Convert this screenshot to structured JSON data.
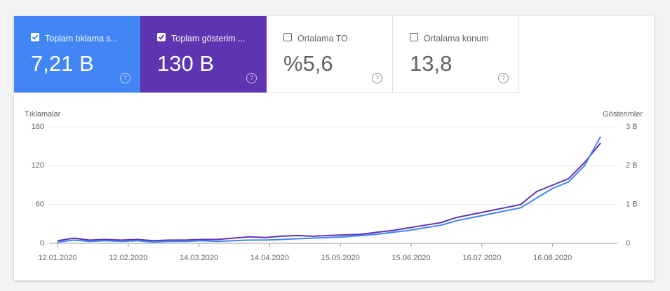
{
  "cards": [
    {
      "label": "Toplam tıklama s...",
      "value": "7,21 B",
      "checked": true,
      "color": "#4285f4"
    },
    {
      "label": "Toplam gösterim ...",
      "value": "130 B",
      "checked": true,
      "color": "#5e35b1"
    },
    {
      "label": "Ortalama TO",
      "value": "%5,6",
      "checked": false
    },
    {
      "label": "Ortalama konum",
      "value": "13,8",
      "checked": false
    }
  ],
  "chart_data": {
    "type": "line",
    "ylabel": "Tıklamalar",
    "y2label": "Gösterimler",
    "x": [
      "12.01.2020",
      "19.01.2020",
      "26.01.2020",
      "02.02.2020",
      "09.02.2020",
      "16.02.2020",
      "23.02.2020",
      "01.03.2020",
      "08.03.2020",
      "15.03.2020",
      "22.03.2020",
      "29.03.2020",
      "05.04.2020",
      "12.04.2020",
      "19.04.2020",
      "26.04.2020",
      "03.05.2020",
      "10.05.2020",
      "17.05.2020",
      "24.05.2020",
      "31.05.2020",
      "07.06.2020",
      "14.06.2020",
      "21.06.2020",
      "28.06.2020",
      "05.07.2020",
      "12.07.2020",
      "19.07.2020",
      "26.07.2020",
      "02.08.2020",
      "09.08.2020",
      "16.08.2020",
      "23.08.2020",
      "30.08.2020",
      "06.09.2020"
    ],
    "xlim": [
      "12.01.2020",
      "06.09.2020"
    ],
    "xticks": [
      "12.01.2020",
      "12.02.2020",
      "14.03.2020",
      "14.04.2020",
      "15.05.2020",
      "15.06.2020",
      "16.07.2020",
      "16.08.2020"
    ],
    "ylim": [
      0,
      180
    ],
    "yticks": [
      0,
      60,
      120,
      180
    ],
    "y2lim": [
      0,
      3000
    ],
    "y2ticks": [
      {
        "value": 0,
        "label": "0"
      },
      {
        "value": 1000,
        "label": "1 B"
      },
      {
        "value": 2000,
        "label": "2 B"
      },
      {
        "value": 3000,
        "label": "3 B"
      }
    ],
    "grid": true,
    "series": [
      {
        "color": "#4285f4",
        "values": [
          2,
          5,
          3,
          4,
          3,
          4,
          2,
          3,
          3,
          4,
          3,
          4,
          5,
          5,
          6,
          7,
          8,
          9,
          10,
          12,
          14,
          17,
          20,
          24,
          28,
          35,
          40,
          45,
          50,
          55,
          70,
          85,
          95,
          120,
          165
        ]
      },
      {
        "color": "#5e35b1",
        "axis": "y2",
        "values": [
          67,
          133,
          83,
          100,
          83,
          100,
          67,
          83,
          83,
          100,
          100,
          133,
          167,
          150,
          183,
          200,
          183,
          200,
          217,
          233,
          283,
          333,
          400,
          467,
          533,
          667,
          750,
          833,
          917,
          1000,
          1333,
          1500,
          1667,
          2083,
          2583
        ]
      }
    ]
  }
}
